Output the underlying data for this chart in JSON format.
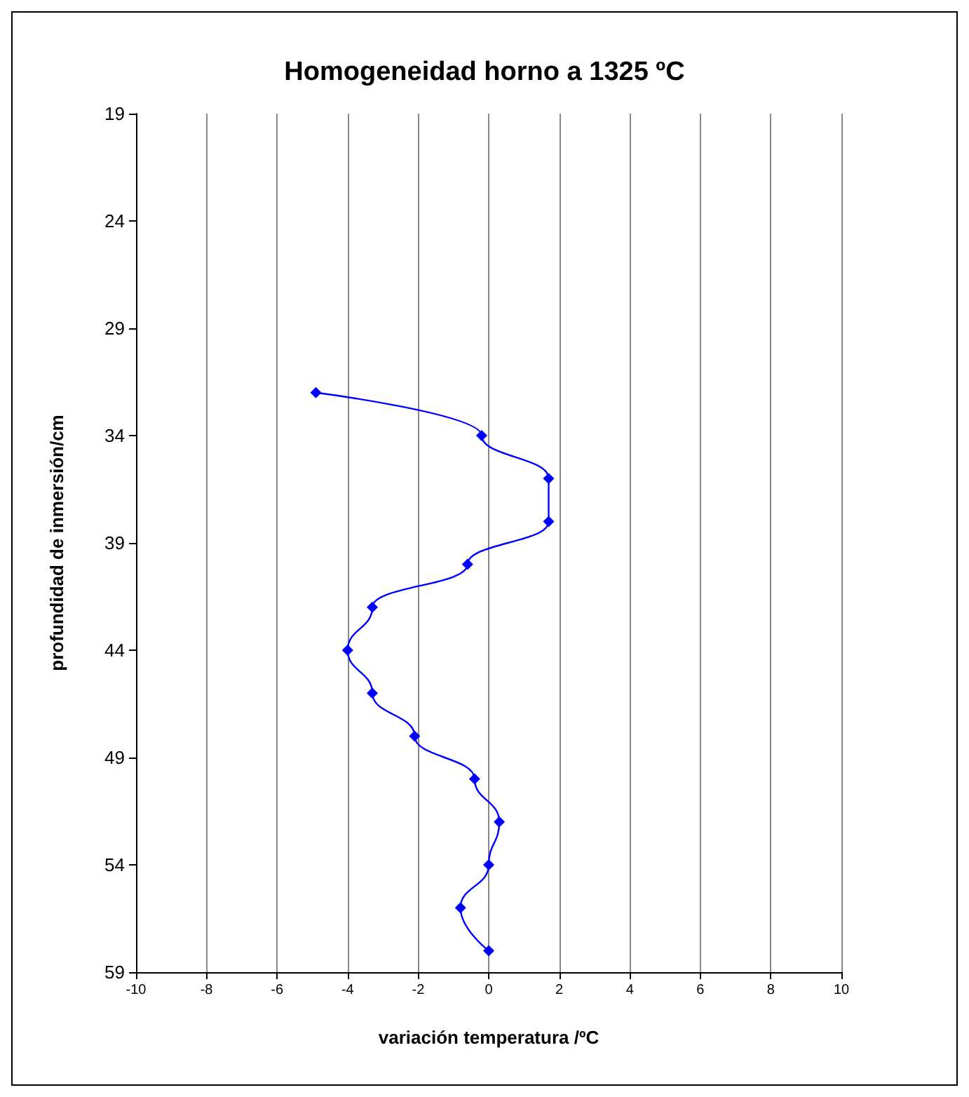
{
  "chart_data": {
    "type": "line",
    "title": "Homogeneidad horno a 1325 ºC",
    "xlabel": "variación temperatura /ºC",
    "ylabel": "profundidad de inmersión/cm",
    "series": [
      {
        "color": "#0000ff",
        "x": [
          -4.9,
          -0.2,
          1.7,
          1.7,
          -0.6,
          -3.3,
          -4,
          -3.3,
          -2.1,
          -0.4,
          0.3,
          0,
          -0.8,
          0
        ],
        "values": [
          32,
          34,
          36,
          38,
          40,
          42,
          44,
          46,
          48,
          50,
          52,
          54,
          56,
          58
        ]
      }
    ],
    "xlim": [
      -10,
      10
    ],
    "xticks": [
      -10,
      -8,
      -6,
      -4,
      -2,
      0,
      2,
      4,
      6,
      8,
      10
    ],
    "ylim": [
      59,
      19
    ],
    "yticks": [
      19,
      24,
      29,
      34,
      39,
      44,
      49,
      54,
      59
    ],
    "grid": "x",
    "marker": "diamond",
    "line_style": "solid"
  }
}
